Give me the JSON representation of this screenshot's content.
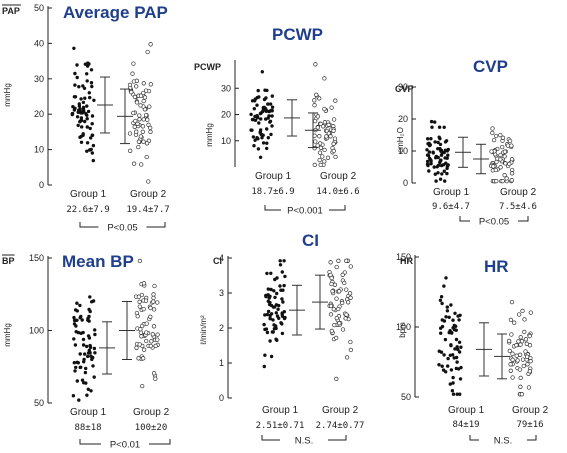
{
  "chart_data": [
    {
      "type": "scatter",
      "title": "Average PAP",
      "corner_label": "PAP",
      "ylabel": "mmHg",
      "ylim": [
        0,
        50
      ],
      "yticks": [
        "0",
        "10",
        "20",
        "30",
        "40",
        "50"
      ],
      "tick_values": [
        0,
        10,
        20,
        30,
        40,
        50
      ],
      "categories": [
        "Group 1",
        "Group 2"
      ],
      "means": [
        22.6,
        19.4
      ],
      "sds": [
        7.9,
        7.7
      ],
      "mean_labels": [
        "22.6±7.9",
        "19.4±7.7"
      ],
      "significance": "P<0.05"
    },
    {
      "type": "scatter",
      "title": "PCWP",
      "corner_label": "PCWP",
      "ylabel": "mmHg",
      "ylim": [
        0,
        40
      ],
      "yticks": [
        "10",
        "20",
        "30"
      ],
      "tick_values": [
        10,
        20,
        30
      ],
      "categories": [
        "Group 1",
        "Group 2"
      ],
      "means": [
        18.7,
        14.0
      ],
      "sds": [
        6.9,
        6.6
      ],
      "mean_labels": [
        "18.7±6.9",
        "14.0±6.6"
      ],
      "significance": "P<0.001"
    },
    {
      "type": "scatter",
      "title": "CVP",
      "corner_label": "CVP",
      "ylabel": "cmH₂O",
      "ylim": [
        0,
        30
      ],
      "yticks": [
        "0",
        "10",
        "20",
        "30"
      ],
      "tick_values": [
        0,
        10,
        20,
        30
      ],
      "categories": [
        "Group 1",
        "Group 2"
      ],
      "means": [
        9.6,
        7.5
      ],
      "sds": [
        4.7,
        4.6
      ],
      "mean_labels": [
        "9.6±4.7",
        "7.5±4.6"
      ],
      "significance": "P<0.05"
    },
    {
      "type": "scatter",
      "title": "Mean BP",
      "corner_label": "BP",
      "ylabel": "mmHg",
      "ylim": [
        50,
        150
      ],
      "yticks": [
        "50",
        "100",
        "150"
      ],
      "tick_values": [
        50,
        100,
        150
      ],
      "categories": [
        "Group 1",
        "Group 2"
      ],
      "means": [
        88,
        100
      ],
      "sds": [
        18,
        20
      ],
      "mean_labels": [
        "88±18",
        "100±20"
      ],
      "significance": "P<0.01"
    },
    {
      "type": "scatter",
      "title": "CI",
      "corner_label": "CI",
      "ylabel": "ℓ/min/m²",
      "ylim": [
        0,
        4
      ],
      "yticks": [
        "0",
        "1",
        "2",
        "3",
        "4"
      ],
      "tick_values": [
        0,
        1,
        2,
        3,
        4
      ],
      "categories": [
        "Group 1",
        "Group 2"
      ],
      "means": [
        2.51,
        2.74
      ],
      "sds": [
        0.71,
        0.77
      ],
      "mean_labels": [
        "2.51±0.71",
        "2.74±0.77"
      ],
      "significance": "N.S."
    },
    {
      "type": "scatter",
      "title": "HR",
      "corner_label": "HR",
      "ylabel": "bpm",
      "ylim": [
        50,
        150
      ],
      "yticks": [
        "50",
        "100",
        "150"
      ],
      "tick_values": [
        50,
        100,
        150
      ],
      "categories": [
        "Group 1",
        "Group 2"
      ],
      "means": [
        84,
        79
      ],
      "sds": [
        19,
        16
      ],
      "mean_labels": [
        "84±19",
        "79±16"
      ],
      "significance": "N.S."
    }
  ]
}
